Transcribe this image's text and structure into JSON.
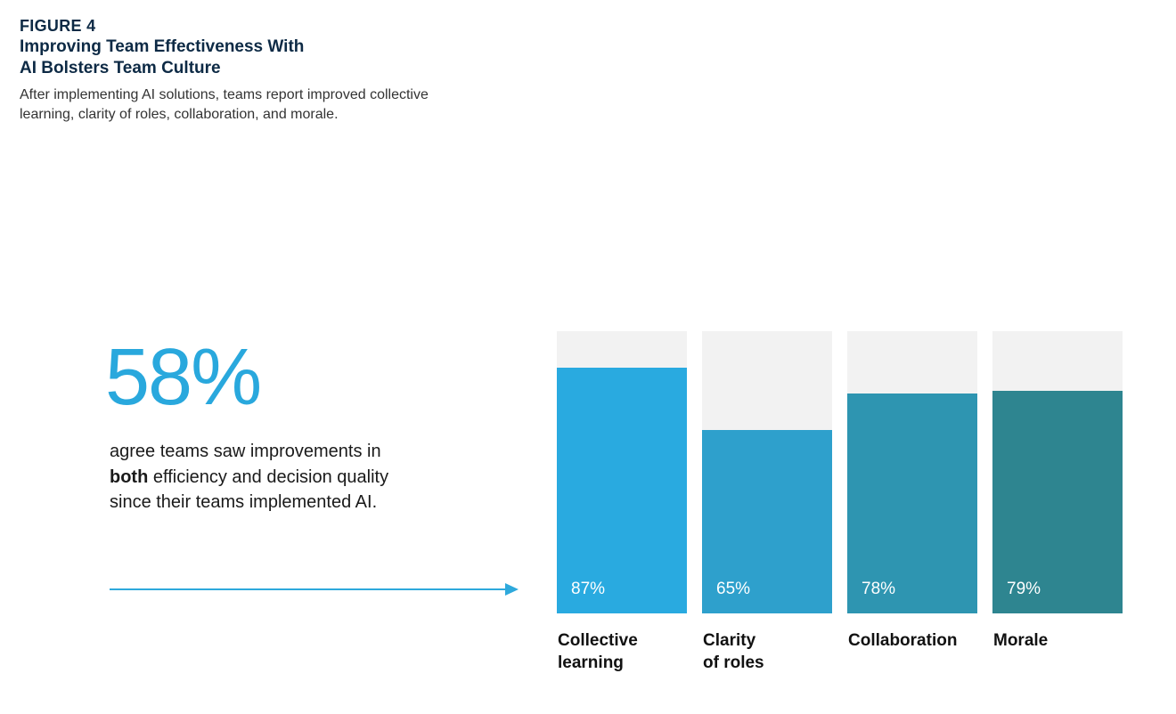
{
  "figure": {
    "label": "FIGURE 4",
    "title_line1": "Improving Team Effectiveness With",
    "title_line2": "AI Bolsters Team Culture",
    "subtitle": "After implementing AI solutions, teams report improved collective learning, clarity of roles, collaboration, and morale."
  },
  "callout": {
    "value": "58%",
    "text_before": "agree teams saw improvements in ",
    "text_bold": "both",
    "text_after": " efficiency and decision quality since their teams implemented AI."
  },
  "colors": {
    "accent": "#29a8dd",
    "track": "#f2f2f2",
    "arrow": "#2ea9dc",
    "bars": [
      "#29aae0",
      "#2ea0cc",
      "#2e95b1",
      "#2e8590"
    ]
  },
  "chart_data": {
    "type": "bar",
    "categories": [
      "Collective learning",
      "Clarity of roles",
      "Collaboration",
      "Morale"
    ],
    "label_lines": [
      [
        "Collective",
        "learning"
      ],
      [
        "Clarity",
        "of roles"
      ],
      [
        "Collaboration"
      ],
      [
        "Morale"
      ]
    ],
    "values": [
      87,
      65,
      78,
      79
    ],
    "value_labels": [
      "87%",
      "65%",
      "78%",
      "79%"
    ],
    "ylim": [
      0,
      100
    ],
    "grid": false,
    "title": "",
    "xlabel": "",
    "ylabel": ""
  }
}
